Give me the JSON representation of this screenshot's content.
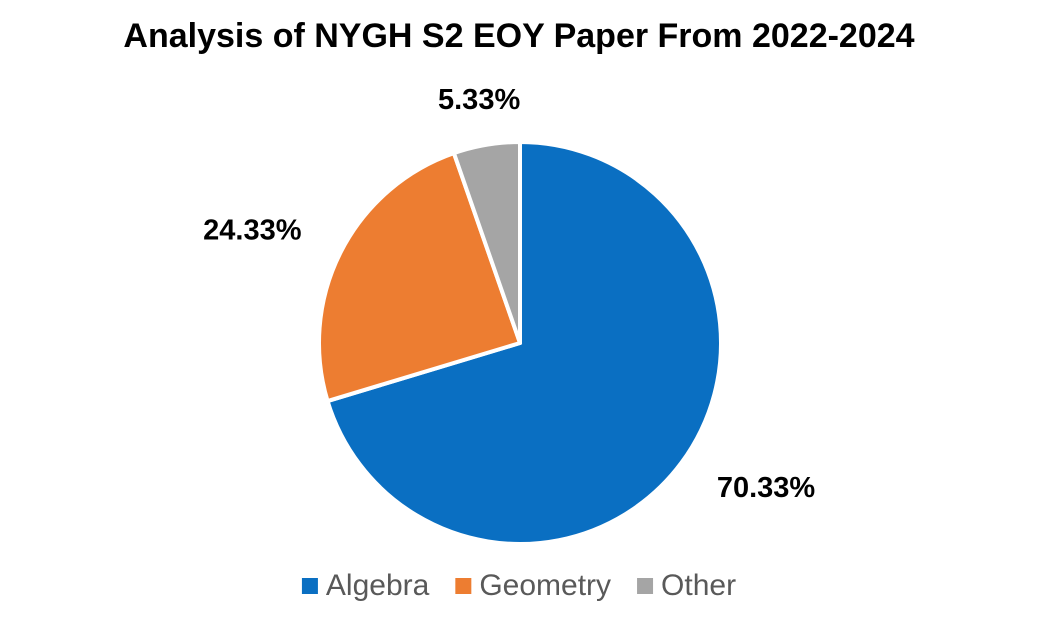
{
  "chart_data": {
    "type": "pie",
    "title": "Analysis of NYGH S2 EOY Paper From 2022-2024",
    "categories": [
      "Algebra",
      "Geometry",
      "Other"
    ],
    "values": [
      70.33,
      24.33,
      5.33
    ],
    "value_labels": [
      "70.33%",
      "24.33%",
      "5.33%"
    ],
    "colors": [
      "#0a6fc2",
      "#ed7d31",
      "#a5a5a5"
    ],
    "legend": "bottom"
  }
}
